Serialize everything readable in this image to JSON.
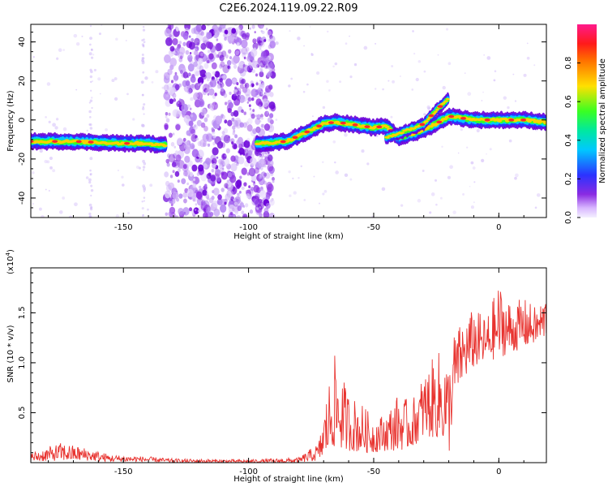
{
  "title": "C2E6.2024.119.09.22.R09",
  "colors": {
    "line": "#e8332f",
    "ridge": [
      "#6a00d8",
      "#2b33ff",
      "#00c8ff",
      "#39ff22",
      "#ffd000",
      "#ff2a2a"
    ],
    "scatter": "#a86cf0"
  },
  "chart_data": [
    {
      "type": "heatmap",
      "xlabel": "Height of straight line (km)",
      "ylabel": "Frequency (Hz)",
      "xlim": [
        -187,
        19
      ],
      "ylim": [
        -50,
        49
      ],
      "xticks": [
        -150,
        -100,
        -50,
        0
      ],
      "yticks": [
        -40,
        -20,
        0,
        20,
        40
      ],
      "xtick_labels": [
        "-150",
        "-100",
        "-50",
        "0"
      ],
      "ytick_labels": [
        "-40",
        "-20",
        "0",
        "20",
        "40"
      ],
      "ridge": {
        "x": [
          -187,
          -170,
          -150,
          -140,
          -135,
          -95,
          -85,
          -78,
          -70,
          -65,
          -60,
          -55,
          -50,
          -45,
          -40,
          -32,
          -25,
          -20,
          -15,
          -10,
          0,
          10,
          19
        ],
        "y": [
          -11,
          -11,
          -12,
          -12,
          -13,
          -12,
          -11,
          -7,
          -2,
          -1,
          -2,
          -3,
          -4,
          -3,
          -9,
          -6,
          -2,
          2,
          1,
          0,
          0,
          0,
          -1
        ]
      },
      "upper_branch": {
        "x": [
          -45,
          -38,
          -30,
          -25,
          -20
        ],
        "y": [
          -9,
          -6,
          -2,
          5,
          11
        ]
      },
      "scatter_region_x": [
        -133,
        -90
      ],
      "colorbar": {
        "label": "Normalized spectral amplitude",
        "range": [
          0,
          1
        ],
        "ticks": [
          0,
          0.2,
          0.4,
          0.6,
          0.8
        ],
        "tick_labels": [
          "0.0",
          "0.2",
          "0.4",
          "0.6",
          "0.8"
        ]
      }
    },
    {
      "type": "line",
      "xlabel": "Height of straight line (km)",
      "ylabel": "SNR (10 * v/v)",
      "y_multiplier_label": "(x10",
      "y_multiplier_exp": "4",
      "y_multiplier_close": ")",
      "xlim": [
        -187,
        19
      ],
      "ylim": [
        0,
        1.95
      ],
      "xticks": [
        -150,
        -100,
        -50,
        0
      ],
      "yticks": [
        0.5,
        1.0,
        1.5
      ],
      "xtick_labels": [
        "-150",
        "-100",
        "-50",
        "0"
      ],
      "ytick_labels": [
        "0.5",
        "1.0",
        "1.5"
      ],
      "envelope": {
        "x": [
          -187,
          -175,
          -165,
          -155,
          -140,
          -130,
          -100,
          -80,
          -72,
          -70,
          -66,
          -60,
          -55,
          -50,
          -45,
          -40,
          -35,
          -30,
          -25,
          -22,
          -20,
          -18,
          -15,
          -10,
          -5,
          0,
          5,
          10,
          15,
          19
        ],
        "low": [
          0.01,
          0.02,
          0.02,
          0.01,
          0.01,
          0.0,
          0.0,
          0.0,
          0.02,
          0.05,
          0.15,
          0.12,
          0.1,
          0.1,
          0.12,
          0.12,
          0.15,
          0.25,
          0.25,
          0.2,
          0.05,
          0.6,
          0.8,
          0.95,
          1.0,
          1.05,
          1.1,
          1.15,
          1.2,
          1.25
        ],
        "high": [
          0.1,
          0.2,
          0.15,
          0.08,
          0.06,
          0.04,
          0.03,
          0.05,
          0.2,
          0.5,
          1.1,
          0.7,
          0.6,
          0.45,
          0.5,
          0.7,
          0.6,
          0.9,
          1.1,
          1.15,
          1.0,
          1.3,
          1.4,
          1.55,
          1.45,
          1.8,
          1.6,
          1.65,
          1.55,
          1.7
        ]
      }
    }
  ]
}
